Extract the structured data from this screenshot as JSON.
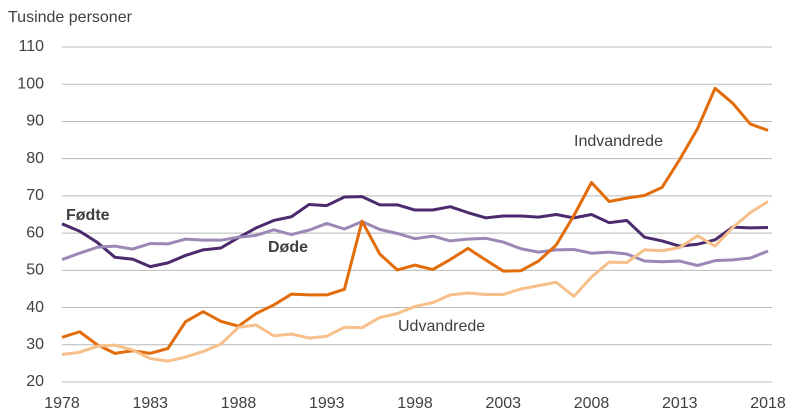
{
  "chart_data": {
    "type": "line",
    "ylabel": "Tusinde personer",
    "x": [
      1978,
      1979,
      1980,
      1981,
      1982,
      1983,
      1984,
      1985,
      1986,
      1987,
      1988,
      1989,
      1990,
      1991,
      1992,
      1993,
      1994,
      1995,
      1996,
      1997,
      1998,
      1999,
      2000,
      2001,
      2002,
      2003,
      2004,
      2005,
      2006,
      2007,
      2008,
      2009,
      2010,
      2011,
      2012,
      2013,
      2014,
      2015,
      2016,
      2017,
      2018
    ],
    "xlim": [
      1978,
      2018
    ],
    "xticks": [
      1978,
      1983,
      1988,
      1993,
      1998,
      2003,
      2008,
      2013,
      2018
    ],
    "ylim": [
      20,
      110
    ],
    "yticks": [
      20,
      30,
      40,
      50,
      60,
      70,
      80,
      90,
      100,
      110
    ],
    "grid": true,
    "series": [
      {
        "name": "Fødte",
        "color": "#4b2a6e",
        "values": [
          62.5,
          60.5,
          57.5,
          53.5,
          53,
          51,
          52,
          54,
          55.5,
          56,
          58.8,
          61.4,
          63.4,
          64.4,
          67.7,
          67.4,
          69.7,
          69.8,
          67.6,
          67.6,
          66.2,
          66.2,
          67.1,
          65.5,
          64.1,
          64.6,
          64.6,
          64.3,
          65,
          64.1,
          65,
          62.8,
          63.4,
          58.9,
          57.9,
          56.5,
          57,
          58.2,
          61.6,
          61.4,
          61.5
        ]
      },
      {
        "name": "Døde",
        "color": "#9b88b5",
        "values": [
          52.9,
          54.6,
          56.2,
          56.5,
          55.7,
          57.2,
          57.1,
          58.4,
          58.1,
          58.1,
          58.9,
          59.4,
          60.9,
          59.6,
          60.8,
          62.6,
          61.1,
          63.1,
          61,
          59.9,
          58.5,
          59.2,
          57.9,
          58.4,
          58.6,
          57.6,
          55.8,
          54.9,
          55.5,
          55.6,
          54.6,
          54.9,
          54.4,
          52.5,
          52.3,
          52.5,
          51.3,
          52.6,
          52.8,
          53.3,
          55.2
        ]
      },
      {
        "name": "Indvandrede",
        "color": "#e36c0a",
        "values": [
          32,
          33.5,
          30,
          27.7,
          28.4,
          27.7,
          29,
          36.2,
          38.9,
          36.3,
          35,
          38.4,
          40.7,
          43.6,
          43.4,
          43.4,
          44.9,
          63.2,
          54.4,
          50.1,
          51.4,
          50.2,
          52.9,
          55.9,
          52.8,
          49.8,
          49.9,
          52.5,
          56.8,
          64.7,
          73.6,
          68.5,
          69.4,
          70.1,
          72.3,
          79.8,
          88,
          98.9,
          94.9,
          89.3,
          87.6
        ]
      },
      {
        "name": "Udvandrede",
        "color": "#f7c08a",
        "values": [
          27.4,
          28,
          29.6,
          29.9,
          28.6,
          26.3,
          25.6,
          26.7,
          28.2,
          30.2,
          34.7,
          35.3,
          32.4,
          32.9,
          31.8,
          32.3,
          34.7,
          34.6,
          37.3,
          38.4,
          40.3,
          41.3,
          43.4,
          43.9,
          43.5,
          43.5,
          45,
          45.9,
          46.8,
          43,
          48.2,
          52.2,
          52.1,
          55.5,
          55.3,
          56.1,
          59.3,
          56.5,
          61.5,
          65.5,
          68.5
        ]
      }
    ]
  }
}
